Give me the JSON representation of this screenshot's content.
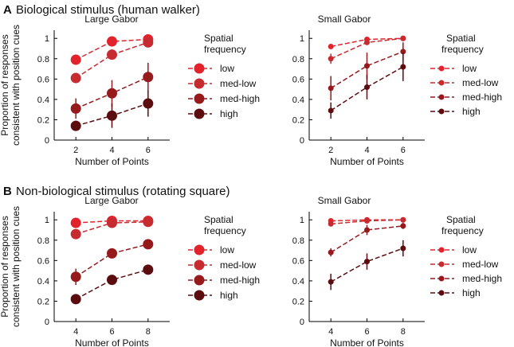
{
  "panels": [
    {
      "letter": "A",
      "title": "Biological stimulus (human walker)"
    },
    {
      "letter": "B",
      "title": "Non-biological stimulus (rotating square)"
    }
  ],
  "legend": {
    "title_line1": "Spatial",
    "title_line2": "frequency",
    "entries": [
      "low",
      "med-low",
      "med-high",
      "high"
    ]
  },
  "colors": [
    "#e3232c",
    "#c62b30",
    "#96191c",
    "#5c0c0e"
  ],
  "chart_data": [
    {
      "type": "line",
      "panel": "A",
      "title": "Large Gabor",
      "xlabel": "Number of Points",
      "ylabel": [
        "Proportion of responses",
        "consistent with position cues"
      ],
      "xlim": [
        0.8,
        7.2
      ],
      "ylim": [
        0,
        1.08
      ],
      "xticks": [
        2,
        4,
        6
      ],
      "yticks": [
        0,
        0.2,
        0.4,
        0.6,
        0.8,
        1
      ],
      "ytick_labels": [
        "0",
        "0.2",
        "0.4",
        "0.6",
        "0.8",
        "1"
      ],
      "x": [
        2,
        4,
        6
      ],
      "marker": "large",
      "series": [
        {
          "name": "low",
          "values": [
            0.79,
            0.97,
            0.99
          ],
          "err": [
            0.02,
            0.02,
            0.01
          ]
        },
        {
          "name": "med-low",
          "values": [
            0.61,
            0.84,
            0.96
          ],
          "err": [
            0.05,
            0.05,
            0.02
          ]
        },
        {
          "name": "med-high",
          "values": [
            0.31,
            0.46,
            0.62
          ],
          "err": [
            0.1,
            0.13,
            0.14
          ]
        },
        {
          "name": "high",
          "values": [
            0.14,
            0.24,
            0.36
          ],
          "err": [
            0.05,
            0.12,
            0.13
          ]
        }
      ]
    },
    {
      "type": "line",
      "panel": "A",
      "title": "Small Gabor",
      "xlabel": "Number of Points",
      "ylabel": [],
      "xlim": [
        0.8,
        7.2
      ],
      "ylim": [
        0,
        1.08
      ],
      "xticks": [
        2,
        4,
        6
      ],
      "yticks": [
        0,
        0.2,
        0.4,
        0.6,
        0.8,
        1
      ],
      "ytick_labels": [
        "0",
        "0.2",
        "0.4",
        "0.6",
        "0.8",
        "1"
      ],
      "x": [
        2,
        4,
        6
      ],
      "marker": "small",
      "series": [
        {
          "name": "low",
          "values": [
            0.92,
            0.99,
            1.0
          ],
          "err": [
            0.02,
            0.01,
            0.01
          ]
        },
        {
          "name": "med-low",
          "values": [
            0.8,
            0.96,
            1.0
          ],
          "err": [
            0.05,
            0.02,
            0.01
          ]
        },
        {
          "name": "med-high",
          "values": [
            0.51,
            0.73,
            0.87
          ],
          "err": [
            0.12,
            0.13,
            0.09
          ]
        },
        {
          "name": "high",
          "values": [
            0.29,
            0.52,
            0.72
          ],
          "err": [
            0.08,
            0.12,
            0.14
          ]
        }
      ]
    },
    {
      "type": "line",
      "panel": "B",
      "title": "Large Gabor",
      "xlabel": "Number of Points",
      "ylabel": [
        "Proportion of responses",
        "consistent with position cues"
      ],
      "xlim": [
        2.8,
        9.2
      ],
      "ylim": [
        0,
        1.08
      ],
      "xticks": [
        4,
        6,
        8
      ],
      "yticks": [
        0,
        0.2,
        0.4,
        0.6,
        0.8,
        1
      ],
      "ytick_labels": [
        "0",
        "0.2",
        "0.4",
        "0.6",
        "0.8",
        "1"
      ],
      "x": [
        4,
        6,
        8
      ],
      "marker": "large",
      "series": [
        {
          "name": "low",
          "values": [
            0.97,
            0.99,
            0.99
          ],
          "err": [
            0.01,
            0.01,
            0.01
          ]
        },
        {
          "name": "med-low",
          "values": [
            0.86,
            0.97,
            0.98
          ],
          "err": [
            0.02,
            0.01,
            0.01
          ]
        },
        {
          "name": "med-high",
          "values": [
            0.44,
            0.67,
            0.76
          ],
          "err": [
            0.08,
            0.03,
            0.03
          ]
        },
        {
          "name": "high",
          "values": [
            0.22,
            0.41,
            0.51
          ],
          "err": [
            0.02,
            0.03,
            0.03
          ]
        }
      ]
    },
    {
      "type": "line",
      "panel": "B",
      "title": "Small Gabor",
      "xlabel": "Number of Points",
      "ylabel": [],
      "xlim": [
        2.8,
        9.2
      ],
      "ylim": [
        0,
        1.08
      ],
      "xticks": [
        4,
        6,
        8
      ],
      "yticks": [
        0,
        0.2,
        0.4,
        0.6,
        0.8,
        1
      ],
      "ytick_labels": [
        "0",
        "0.2",
        "0.4",
        "0.6",
        "0.8",
        "1"
      ],
      "x": [
        4,
        6,
        8
      ],
      "marker": "small",
      "series": [
        {
          "name": "low",
          "values": [
            0.99,
            1.0,
            1.0
          ],
          "err": [
            0.01,
            0.01,
            0.01
          ]
        },
        {
          "name": "med-low",
          "values": [
            0.96,
            0.99,
            1.0
          ],
          "err": [
            0.02,
            0.01,
            0.01
          ]
        },
        {
          "name": "med-high",
          "values": [
            0.68,
            0.9,
            0.94
          ],
          "err": [
            0.04,
            0.05,
            0.03
          ]
        },
        {
          "name": "high",
          "values": [
            0.39,
            0.59,
            0.72
          ],
          "err": [
            0.08,
            0.08,
            0.08
          ]
        }
      ]
    }
  ]
}
